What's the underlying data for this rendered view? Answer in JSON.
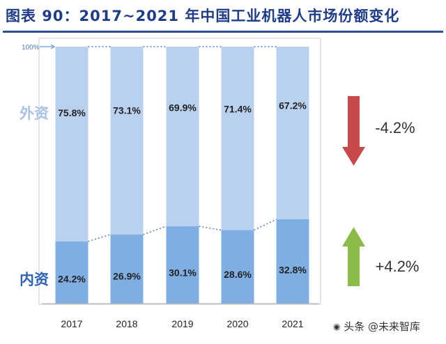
{
  "header": {
    "title": "图表 90：2017~2021 年中国工业机器人市场份额变化"
  },
  "chart_data": {
    "type": "bar",
    "stacked": true,
    "categories": [
      "2017",
      "2018",
      "2019",
      "2020",
      "2021"
    ],
    "series": [
      {
        "name": "内资",
        "values": [
          24.2,
          26.9,
          30.1,
          28.6,
          32.8
        ],
        "labels": [
          "24.2%",
          "26.9%",
          "30.1%",
          "28.6%",
          "32.8%"
        ],
        "color": "#7faee3"
      },
      {
        "name": "外资",
        "values": [
          75.8,
          73.1,
          69.9,
          71.4,
          67.2
        ],
        "labels": [
          "75.8%",
          "73.1%",
          "69.9%",
          "71.4%",
          "67.2%"
        ],
        "color": "#b9d0ee"
      }
    ],
    "ylim": [
      0,
      100
    ],
    "y_tick_label": "100%",
    "legend_position": "left",
    "annotations": {
      "foreign_change": {
        "label": "-4.2%",
        "arrow": "down",
        "color": "#c9494a"
      },
      "domestic_change": {
        "label": "+4.2%",
        "arrow": "up",
        "color": "#8dbb4a"
      }
    }
  },
  "watermark": {
    "text": "头条 @未来智库",
    "icon": "camera-icon"
  }
}
